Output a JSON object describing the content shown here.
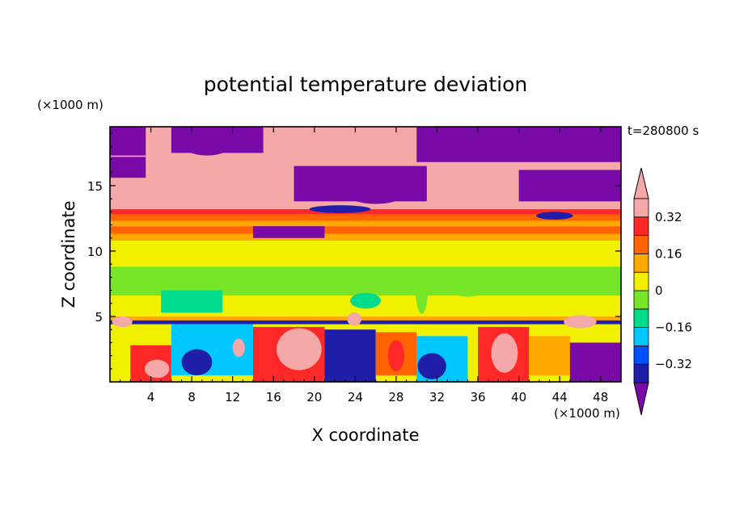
{
  "chart_data": {
    "type": "heatmap",
    "title": "potential temperature deviation",
    "xlabel": "X coordinate",
    "ylabel": "Z coordinate",
    "x_unit": "(×1000 m)",
    "y_unit": "(×1000 m)",
    "time_label": "t=280800 s",
    "xlim": [
      0,
      50
    ],
    "ylim": [
      0,
      19.5
    ],
    "x_ticks": [
      4,
      8,
      12,
      16,
      20,
      24,
      28,
      32,
      36,
      40,
      44,
      48
    ],
    "x_tick_labels": [
      "4",
      "8",
      "12",
      "16",
      "20",
      "24",
      "28",
      "32",
      "36",
      "40",
      "44",
      "48"
    ],
    "y_ticks": [
      5,
      10,
      15
    ],
    "y_tick_labels": [
      "5",
      "10",
      "15"
    ],
    "colorbar": {
      "levels": [
        -0.4,
        -0.32,
        -0.24,
        -0.16,
        -0.08,
        0,
        0.08,
        0.16,
        0.24,
        0.32,
        0.4
      ],
      "labels": [
        "0.32",
        "0.16",
        "0",
        "−0.16",
        "−0.32"
      ],
      "label_values": [
        0.32,
        0.16,
        0,
        -0.16,
        -0.32
      ],
      "colors": [
        "#7a0aa8",
        "#1e1ea8",
        "#0050ff",
        "#00c8ff",
        "#00dc8c",
        "#78e628",
        "#f0f000",
        "#ffa800",
        "#ff6400",
        "#ff2828",
        "#f5a8a8"
      ],
      "extend": "both"
    },
    "regions": [
      {
        "x0": 0,
        "x1": 50,
        "y0": 13.2,
        "y1": 19.5,
        "value": 0.45
      },
      {
        "x0": 0,
        "x1": 3.5,
        "y0": 17.3,
        "y1": 19.5,
        "value": -0.45
      },
      {
        "x0": 6,
        "x1": 15,
        "y0": 17.5,
        "y1": 19.5,
        "value": -0.45
      },
      {
        "x0": 30,
        "x1": 50,
        "y0": 16.8,
        "y1": 19.5,
        "value": -0.45
      },
      {
        "x0": 0,
        "x1": 3.5,
        "y0": 15.6,
        "y1": 17.2,
        "value": -0.45
      },
      {
        "x0": 18,
        "x1": 31,
        "y0": 13.8,
        "y1": 16.5,
        "value": -0.45
      },
      {
        "x0": 40,
        "x1": 50,
        "y0": 13.8,
        "y1": 16.2,
        "value": -0.45
      },
      {
        "x0": 0,
        "x1": 50,
        "y0": 12.8,
        "y1": 13.2,
        "value": 0.28
      },
      {
        "x0": 0,
        "x1": 50,
        "y0": 12.3,
        "y1": 12.8,
        "value": 0.2
      },
      {
        "x0": 0,
        "x1": 50,
        "y0": 11.9,
        "y1": 12.3,
        "value": 0.12
      },
      {
        "x0": 0,
        "x1": 50,
        "y0": 11.3,
        "y1": 11.9,
        "value": 0.2
      },
      {
        "x0": 0,
        "x1": 50,
        "y0": 10.8,
        "y1": 11.3,
        "value": 0.12
      },
      {
        "x0": 14,
        "x1": 21,
        "y0": 11.0,
        "y1": 11.9,
        "value": -0.45
      },
      {
        "x0": 0,
        "x1": 50,
        "y0": 5.0,
        "y1": 10.8,
        "value": 0.04
      },
      {
        "x0": 0,
        "x1": 50,
        "y0": 6.6,
        "y1": 8.8,
        "value": -0.04
      },
      {
        "x0": 5,
        "x1": 11,
        "y0": 5.3,
        "y1": 7.0,
        "value": -0.12
      },
      {
        "x0": 0,
        "x1": 50,
        "y0": 4.7,
        "y1": 5.0,
        "value": 0.12
      },
      {
        "x0": 0,
        "x1": 50,
        "y0": 4.4,
        "y1": 4.7,
        "value": -0.36
      },
      {
        "x0": 0,
        "x1": 50,
        "y0": 0,
        "y1": 4.4,
        "value": 0.04
      },
      {
        "x0": 0,
        "x1": 3,
        "y0": 0,
        "y1": 2.5,
        "value": 0.04
      },
      {
        "x0": 2,
        "x1": 6,
        "y0": 0,
        "y1": 2.8,
        "value": 0.3
      },
      {
        "x0": 6,
        "x1": 14,
        "y0": 0.5,
        "y1": 4.4,
        "value": -0.2
      },
      {
        "x0": 14,
        "x1": 21,
        "y0": 0,
        "y1": 4.2,
        "value": 0.3
      },
      {
        "x0": 21,
        "x1": 26,
        "y0": 0,
        "y1": 4.0,
        "value": -0.36
      },
      {
        "x0": 26,
        "x1": 30,
        "y0": 0.5,
        "y1": 3.8,
        "value": 0.2
      },
      {
        "x0": 30,
        "x1": 35,
        "y0": 0,
        "y1": 3.5,
        "value": -0.2
      },
      {
        "x0": 36,
        "x1": 41,
        "y0": 0,
        "y1": 4.2,
        "value": 0.3
      },
      {
        "x0": 41,
        "x1": 45,
        "y0": 0.5,
        "y1": 3.5,
        "value": 0.12
      },
      {
        "x0": 45,
        "x1": 50,
        "y0": 0,
        "y1": 3.0,
        "value": -0.45
      }
    ],
    "blobs": [
      {
        "x": 18.5,
        "y": 2.5,
        "rx": 2.2,
        "ry": 1.6,
        "value": 0.45
      },
      {
        "x": 4.6,
        "y": 1.0,
        "rx": 1.2,
        "ry": 0.7,
        "value": 0.45
      },
      {
        "x": 38.6,
        "y": 2.2,
        "rx": 1.3,
        "ry": 1.5,
        "value": 0.45
      },
      {
        "x": 12.6,
        "y": 2.6,
        "rx": 0.6,
        "ry": 0.7,
        "value": 0.45
      },
      {
        "x": 23.9,
        "y": 4.8,
        "rx": 0.7,
        "ry": 0.5,
        "value": 0.45
      },
      {
        "x": 46.0,
        "y": 4.6,
        "rx": 1.6,
        "ry": 0.5,
        "value": 0.45
      },
      {
        "x": 1.2,
        "y": 4.6,
        "rx": 1.0,
        "ry": 0.4,
        "value": 0.45
      },
      {
        "x": 47.5,
        "y": 1.5,
        "rx": 2.0,
        "ry": 1.0,
        "value": -0.45
      },
      {
        "x": 8.5,
        "y": 1.5,
        "rx": 1.5,
        "ry": 1.0,
        "value": -0.36
      },
      {
        "x": 31.5,
        "y": 1.2,
        "rx": 1.4,
        "ry": 1.0,
        "value": -0.36
      },
      {
        "x": 28.0,
        "y": 2.0,
        "rx": 0.8,
        "ry": 1.2,
        "value": 0.3
      },
      {
        "x": 3.0,
        "y": 7.5,
        "rx": 1.8,
        "ry": 0.8,
        "value": -0.04
      },
      {
        "x": 35.0,
        "y": 7.5,
        "rx": 2.0,
        "ry": 1.0,
        "value": -0.04
      },
      {
        "x": 25.0,
        "y": 6.2,
        "rx": 1.5,
        "ry": 0.6,
        "value": -0.12
      },
      {
        "x": 18.0,
        "y": 8.0,
        "rx": 1.6,
        "ry": 0.8,
        "value": -0.04
      },
      {
        "x": 30.5,
        "y": 7.0,
        "rx": 0.6,
        "ry": 1.8,
        "value": -0.04
      },
      {
        "x": 2.5,
        "y": 14.3,
        "rx": 1.5,
        "ry": 0.7,
        "value": 0.45
      },
      {
        "x": 7.0,
        "y": 14.0,
        "rx": 1.2,
        "ry": 0.6,
        "value": 0.45
      },
      {
        "x": 36.0,
        "y": 14.6,
        "rx": 3.0,
        "ry": 0.8,
        "value": 0.45
      },
      {
        "x": 9.5,
        "y": 18.2,
        "rx": 2.5,
        "ry": 0.9,
        "value": -0.45
      },
      {
        "x": 26.0,
        "y": 14.2,
        "rx": 2.5,
        "ry": 0.6,
        "value": -0.45
      },
      {
        "x": 44.0,
        "y": 15.0,
        "rx": 2.0,
        "ry": 0.8,
        "value": -0.45
      },
      {
        "x": 22.5,
        "y": 13.2,
        "rx": 3.0,
        "ry": 0.3,
        "value": -0.36
      },
      {
        "x": 43.5,
        "y": 12.7,
        "rx": 1.8,
        "ry": 0.3,
        "value": -0.36
      }
    ]
  }
}
